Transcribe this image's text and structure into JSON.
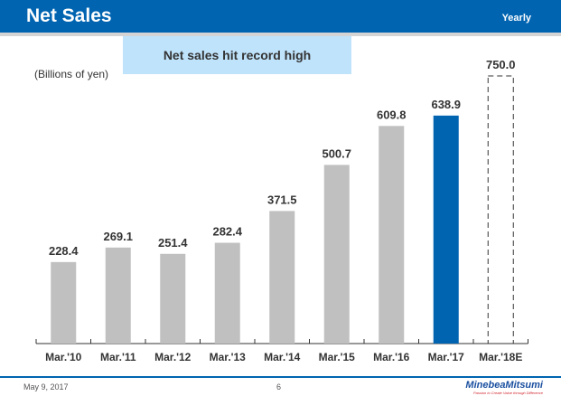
{
  "header": {
    "title": "Net Sales",
    "period": "Yearly"
  },
  "callout": "Net sales hit record high",
  "footer": {
    "date": "May 9, 2017",
    "page": "6",
    "logo": "MinebeaMitsumi",
    "tagline": "Passion to Create Value through Difference"
  },
  "chart_data": {
    "type": "bar",
    "ylabel": "(Billions of yen)",
    "categories": [
      "Mar.'10",
      "Mar.'11",
      "Mar.'12",
      "Mar.'13",
      "Mar.'14",
      "Mar.'15",
      "Mar.'16",
      "Mar.'17",
      "Mar.'18E"
    ],
    "values": [
      228.4,
      269.1,
      251.4,
      282.4,
      371.5,
      500.7,
      609.8,
      638.9,
      750.0
    ],
    "styles": [
      "actual",
      "actual",
      "actual",
      "actual",
      "actual",
      "actual",
      "actual",
      "highlight",
      "estimate"
    ],
    "colors": {
      "actual": "#c0c0c0",
      "highlight": "#0064b1",
      "estimate": "#333333"
    },
    "ylim": [
      0,
      750
    ],
    "grid": false
  }
}
